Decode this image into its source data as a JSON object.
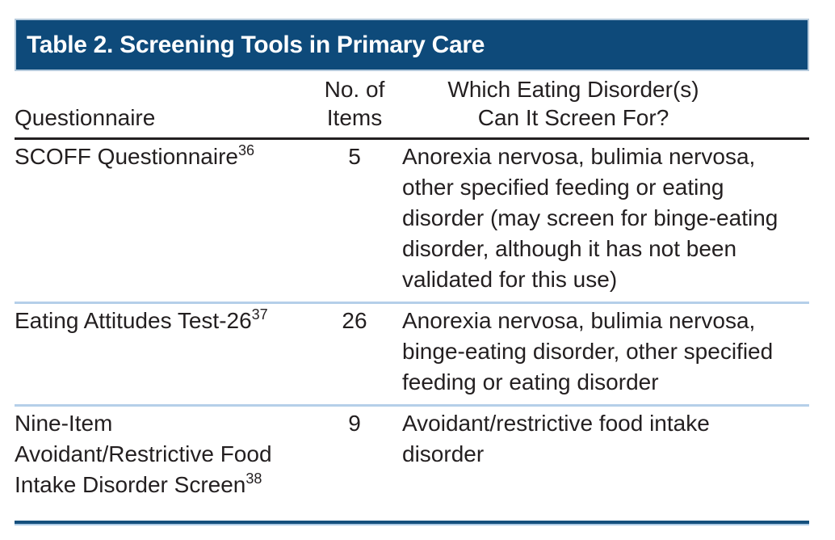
{
  "table": {
    "title": "Table 2. Screening Tools in Primary Care",
    "columns": {
      "questionnaire": "Questionnaire",
      "items_line1": "No. of",
      "items_line2": "Items",
      "screen_line1": "Which Eating Disorder(s)",
      "screen_line2": "Can It Screen For?"
    },
    "rows": [
      {
        "questionnaire": "SCOFF Questionnaire",
        "ref": "36",
        "items": "5",
        "screens_for": "Anorexia nervosa, bulimia nervosa, other specified feeding or eating disorder (may screen for binge-eating disorder, although it has not been validated for this use)"
      },
      {
        "questionnaire": "Eating Attitudes Test-26",
        "ref": "37",
        "items": "26",
        "screens_for": "Anorexia nervosa, bulimia nervosa, binge-eating disorder, other specified feeding or eating disorder"
      },
      {
        "questionnaire": "Nine-Item Avoidant/Restrictive Food Intake Disorder Screen",
        "ref": "38",
        "items": "9",
        "screens_for": "Avoidant/restrictive food intake disorder"
      }
    ],
    "colors": {
      "title_bar_background": "#0e4a7a",
      "title_bar_border": "#b5cadc",
      "title_text": "#ffffff",
      "body_text": "#231f20",
      "header_rule": "#231f20",
      "row_separator": "#b5cfe9",
      "bottom_rule": "#15507d",
      "bottom_rule_underline": "#aecbe5"
    }
  }
}
